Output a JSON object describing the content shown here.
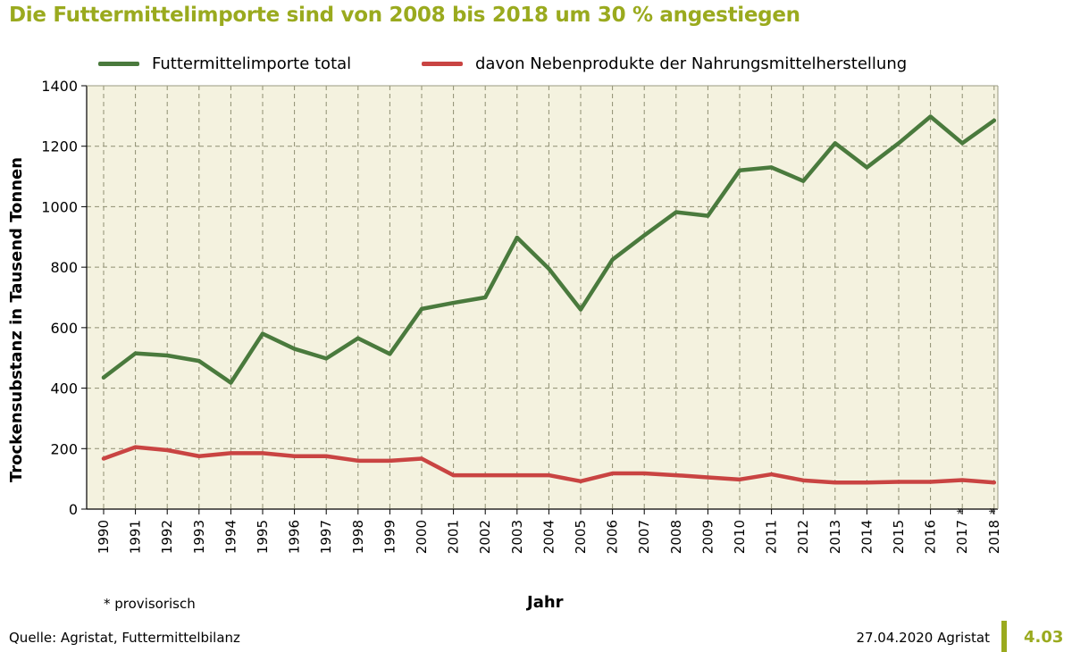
{
  "title": "Die Futtermittelimporte sind von 2008 bis 2018 um 30 % angestiegen",
  "footnote": "* provisorisch",
  "source": "Quelle: Agristat, Futtermittelbilanz",
  "date_note": "27.04.2020 Agristat",
  "page_number": "4.03",
  "colors": {
    "title": "#9aaa1e",
    "total": "#4a7a3d",
    "byproducts": "#c94442",
    "plot_bg": "#f4f2df",
    "grid": "#8e8e72"
  },
  "chart_data": {
    "type": "line",
    "xlabel": "Jahr",
    "ylabel": "Trockensubstanz in Tausend Tonnen",
    "ylim": [
      0,
      1400
    ],
    "yticks": [
      0,
      200,
      400,
      600,
      800,
      1000,
      1200,
      1400
    ],
    "grid": true,
    "legend_position": "top",
    "x": [
      "1990",
      "1991",
      "1992",
      "1993",
      "1994",
      "1995",
      "1996",
      "1997",
      "1998",
      "1999",
      "2000",
      "2001",
      "2002",
      "2003",
      "2004",
      "2005",
      "2006",
      "2007",
      "2008",
      "2009",
      "2010",
      "2011",
      "2012",
      "2013",
      "2014",
      "2015",
      "2016",
      "2017",
      "2018"
    ],
    "x_marks": [
      "",
      "",
      "",
      "",
      "",
      "",
      "",
      "",
      "",
      "",
      "",
      "",
      "",
      "",
      "",
      "",
      "",
      "",
      "",
      "",
      "",
      "",
      "",
      "",
      "",
      "",
      "",
      "*",
      "*"
    ],
    "series": [
      {
        "name": "Futtermittelimporte total",
        "color": "#4a7a3d",
        "values": [
          435,
          515,
          508,
          490,
          418,
          580,
          530,
          498,
          565,
          513,
          662,
          682,
          700,
          898,
          795,
          660,
          825,
          905,
          982,
          970,
          1120,
          1130,
          1085,
          1210,
          1130,
          1210,
          1298,
          1210,
          1285
        ]
      },
      {
        "name": "davon Nebenprodukte der Nahrungsmittelherstellung",
        "color": "#c94442",
        "values": [
          167,
          205,
          195,
          175,
          185,
          185,
          175,
          175,
          160,
          160,
          167,
          112,
          112,
          112,
          112,
          92,
          118,
          118,
          112,
          105,
          98,
          115,
          95,
          88,
          88,
          90,
          90,
          96,
          88
        ]
      }
    ]
  }
}
